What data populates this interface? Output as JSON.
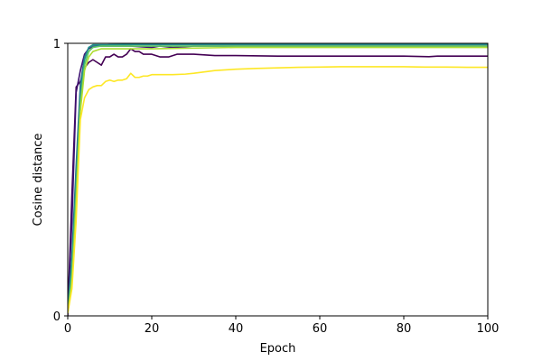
{
  "chart_data": {
    "type": "line",
    "xlabel": "Epoch",
    "ylabel": "Cosine distance",
    "xlim": [
      0,
      100
    ],
    "ylim": [
      0,
      1
    ],
    "xticks": [
      0,
      20,
      40,
      60,
      80,
      100
    ],
    "yticks": [
      0,
      1
    ],
    "xtick_labels": [
      "0",
      "20",
      "40",
      "60",
      "80",
      "100"
    ],
    "ytick_labels": [
      "0",
      "1"
    ],
    "grid": false,
    "legend": "none",
    "series": [
      {
        "color": "#440154",
        "points": [
          [
            0,
            0
          ],
          [
            1,
            0.45
          ],
          [
            2,
            0.84
          ],
          [
            3,
            0.86
          ],
          [
            4,
            0.91
          ],
          [
            5,
            0.93
          ],
          [
            6,
            0.94
          ],
          [
            7,
            0.93
          ],
          [
            8,
            0.92
          ],
          [
            9,
            0.95
          ],
          [
            10,
            0.95
          ],
          [
            11,
            0.96
          ],
          [
            12,
            0.95
          ],
          [
            13,
            0.95
          ],
          [
            14,
            0.96
          ],
          [
            15,
            0.98
          ],
          [
            16,
            0.97
          ],
          [
            17,
            0.97
          ],
          [
            18,
            0.96
          ],
          [
            19,
            0.96
          ],
          [
            20,
            0.96
          ],
          [
            22,
            0.95
          ],
          [
            24,
            0.95
          ],
          [
            26,
            0.96
          ],
          [
            30,
            0.96
          ],
          [
            35,
            0.955
          ],
          [
            40,
            0.955
          ],
          [
            50,
            0.953
          ],
          [
            60,
            0.953
          ],
          [
            70,
            0.953
          ],
          [
            80,
            0.953
          ],
          [
            86,
            0.951
          ],
          [
            88,
            0.953
          ],
          [
            100,
            0.953
          ]
        ]
      },
      {
        "color": "#3b0f70",
        "points": [
          [
            0,
            0.02
          ],
          [
            1,
            0.35
          ],
          [
            2,
            0.82
          ],
          [
            3,
            0.9
          ],
          [
            4,
            0.96
          ],
          [
            5,
            0.98
          ],
          [
            6,
            0.99
          ],
          [
            8,
            0.99
          ],
          [
            10,
            0.99
          ],
          [
            15,
            0.99
          ],
          [
            20,
            0.985
          ],
          [
            22,
            0.99
          ],
          [
            25,
            0.985
          ],
          [
            30,
            0.99
          ],
          [
            40,
            0.99
          ],
          [
            60,
            0.99
          ],
          [
            80,
            0.99
          ],
          [
            100,
            0.99
          ]
        ]
      },
      {
        "color": "#31688e",
        "points": [
          [
            0,
            0.02
          ],
          [
            1,
            0.22
          ],
          [
            2,
            0.55
          ],
          [
            3,
            0.85
          ],
          [
            4,
            0.95
          ],
          [
            5,
            0.985
          ],
          [
            6,
            0.99
          ],
          [
            10,
            0.995
          ],
          [
            20,
            0.995
          ],
          [
            40,
            0.995
          ],
          [
            60,
            0.995
          ],
          [
            80,
            0.995
          ],
          [
            100,
            0.995
          ]
        ]
      },
      {
        "color": "#21918c",
        "points": [
          [
            0,
            0.01
          ],
          [
            1,
            0.2
          ],
          [
            2,
            0.5
          ],
          [
            3,
            0.82
          ],
          [
            4,
            0.94
          ],
          [
            5,
            0.985
          ],
          [
            6,
            0.995
          ],
          [
            10,
            0.995
          ],
          [
            20,
            0.997
          ],
          [
            40,
            0.997
          ],
          [
            60,
            0.997
          ],
          [
            100,
            0.997
          ]
        ]
      },
      {
        "color": "#5ec962",
        "points": [
          [
            0,
            0.01
          ],
          [
            1,
            0.15
          ],
          [
            2,
            0.45
          ],
          [
            3,
            0.78
          ],
          [
            4,
            0.92
          ],
          [
            5,
            0.97
          ],
          [
            6,
            0.985
          ],
          [
            8,
            0.99
          ],
          [
            10,
            0.99
          ],
          [
            20,
            0.99
          ],
          [
            40,
            0.99
          ],
          [
            60,
            0.99
          ],
          [
            80,
            0.99
          ],
          [
            100,
            0.99
          ]
        ]
      },
      {
        "color": "#addc30",
        "points": [
          [
            0,
            0.01
          ],
          [
            1,
            0.12
          ],
          [
            2,
            0.4
          ],
          [
            3,
            0.75
          ],
          [
            4,
            0.9
          ],
          [
            5,
            0.95
          ],
          [
            6,
            0.97
          ],
          [
            8,
            0.98
          ],
          [
            10,
            0.98
          ],
          [
            20,
            0.98
          ],
          [
            40,
            0.985
          ],
          [
            60,
            0.985
          ],
          [
            80,
            0.985
          ],
          [
            100,
            0.985
          ]
        ]
      },
      {
        "color": "#fde725",
        "points": [
          [
            0,
            0.01
          ],
          [
            1,
            0.1
          ],
          [
            2,
            0.35
          ],
          [
            3,
            0.72
          ],
          [
            4,
            0.8
          ],
          [
            5,
            0.83
          ],
          [
            6,
            0.84
          ],
          [
            7,
            0.845
          ],
          [
            8,
            0.845
          ],
          [
            9,
            0.86
          ],
          [
            10,
            0.865
          ],
          [
            11,
            0.86
          ],
          [
            12,
            0.865
          ],
          [
            13,
            0.865
          ],
          [
            14,
            0.87
          ],
          [
            15,
            0.89
          ],
          [
            16,
            0.875
          ],
          [
            17,
            0.875
          ],
          [
            18,
            0.88
          ],
          [
            19,
            0.88
          ],
          [
            20,
            0.885
          ],
          [
            22,
            0.885
          ],
          [
            25,
            0.885
          ],
          [
            28,
            0.887
          ],
          [
            30,
            0.89
          ],
          [
            35,
            0.9
          ],
          [
            40,
            0.905
          ],
          [
            45,
            0.908
          ],
          [
            50,
            0.91
          ],
          [
            55,
            0.912
          ],
          [
            60,
            0.913
          ],
          [
            65,
            0.914
          ],
          [
            70,
            0.914
          ],
          [
            75,
            0.914
          ],
          [
            80,
            0.914
          ],
          [
            85,
            0.913
          ],
          [
            90,
            0.913
          ],
          [
            95,
            0.912
          ],
          [
            100,
            0.912
          ]
        ]
      }
    ]
  }
}
